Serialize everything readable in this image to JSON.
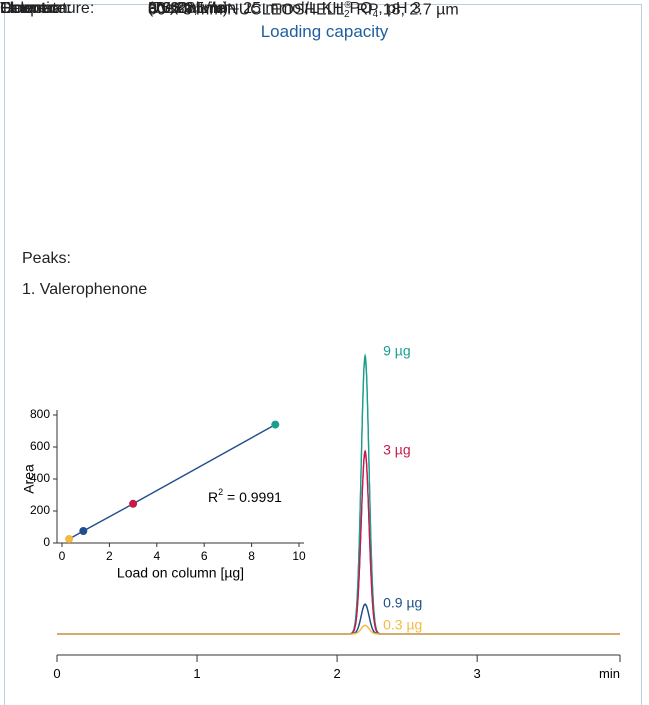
{
  "header": {
    "title": "Loading capacity"
  },
  "parameters": [
    {
      "label": "Column:",
      "lines": [
        [
          {
            "text": "50 x 3 mm NUCLEOSHELL"
          },
          {
            "text": "®",
            "pos": "sup"
          },
          {
            "text": " RP 18, 2.7 µm"
          }
        ]
      ]
    },
    {
      "label": "Eluent:",
      "lines": [
        [
          {
            "text": "acetonitrile – 25 mmol/L KH"
          },
          {
            "text": "2",
            "pos": "sub"
          },
          {
            "text": "PO"
          },
          {
            "text": "4",
            "pos": "sub"
          },
          {
            "text": ", pH 3"
          }
        ],
        [
          {
            "text": "(70:30, v/v)"
          }
        ]
      ]
    },
    {
      "label": "Flow rate:",
      "lines": [
        [
          {
            "text": "0.66 mL/min"
          }
        ]
      ]
    },
    {
      "label": "Temperature:",
      "lines": [
        [
          {
            "text": "30 °C"
          }
        ]
      ]
    },
    {
      "label": "Detection:",
      "lines": [
        [
          {
            "text": "UV, 285 nm"
          }
        ]
      ]
    }
  ],
  "peaks": {
    "heading": "Peaks:",
    "items": [
      "1. Valerophenone"
    ]
  },
  "chart_data": [
    {
      "type": "line",
      "x_label": "min",
      "xlim": [
        0,
        4.02
      ],
      "xticks": [
        0,
        1,
        2,
        3
      ],
      "ylim": [
        0,
        300
      ],
      "x": [
        2.2
      ],
      "series": [
        {
          "name": "9 µg",
          "color": "#1a9e8f",
          "values": [
            289
          ]
        },
        {
          "name": "3 µg",
          "color": "#c8194b",
          "values": [
            190
          ]
        },
        {
          "name": "0.9 µg",
          "color": "#1f4e8c",
          "values": [
            31
          ]
        },
        {
          "name": "0.3 µg",
          "color": "#f5b942",
          "values": [
            9
          ]
        }
      ]
    },
    {
      "type": "scatter",
      "x_label": "Load on column [µg]",
      "y_label": "Area",
      "xlim": [
        0,
        10
      ],
      "xticks": [
        0,
        2,
        4,
        6,
        8,
        10
      ],
      "ylim": [
        0,
        800
      ],
      "yticks": [
        0,
        200,
        400,
        600,
        800
      ],
      "x": [
        0.3,
        0.9,
        3,
        9
      ],
      "values": [
        25,
        75,
        245,
        740
      ],
      "colors": [
        "#f5b942",
        "#1f4e8c",
        "#c8194b",
        "#1a9e8f"
      ],
      "line_color": "#1f4e8c",
      "annotation": [
        {
          "text": "R"
        },
        {
          "text": "2",
          "pos": "sup"
        },
        {
          "text": " = 0.9991"
        }
      ]
    }
  ]
}
